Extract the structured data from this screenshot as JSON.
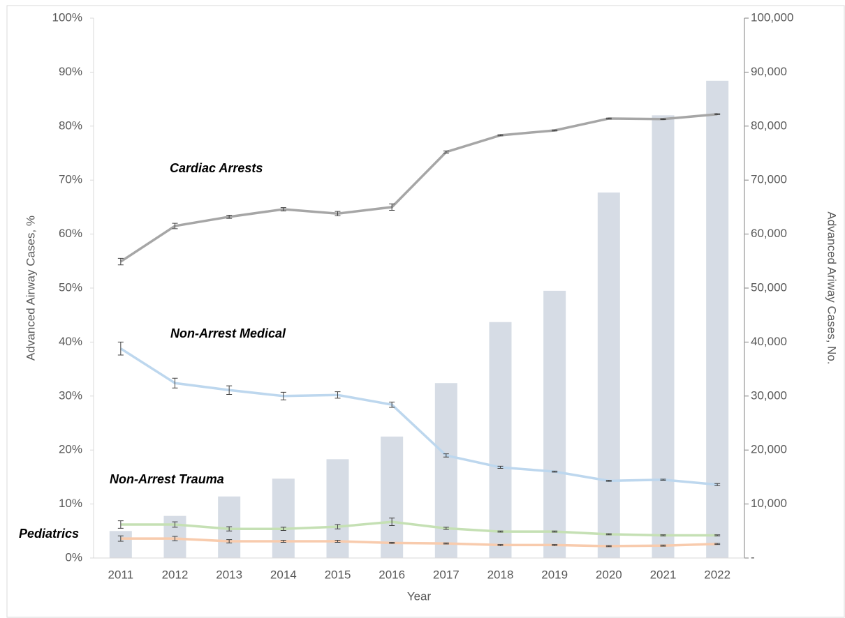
{
  "chart_data": {
    "type": "bar-line",
    "xlabel": "Year",
    "ylabel": "Advanced Airway Cases, %",
    "y2label": "Advanced Ariway Cases, No.",
    "categories": [
      "2011",
      "2012",
      "2013",
      "2014",
      "2015",
      "2016",
      "2017",
      "2018",
      "2019",
      "2020",
      "2021",
      "2022"
    ],
    "ylim": [
      0,
      100
    ],
    "yticks": [
      {
        "value": 0,
        "label": "0%"
      },
      {
        "value": 10,
        "label": "10%"
      },
      {
        "value": 20,
        "label": "20%"
      },
      {
        "value": 30,
        "label": "30%"
      },
      {
        "value": 40,
        "label": "40%"
      },
      {
        "value": 50,
        "label": "50%"
      },
      {
        "value": 60,
        "label": "60%"
      },
      {
        "value": 70,
        "label": "70%"
      },
      {
        "value": 80,
        "label": "80%"
      },
      {
        "value": 90,
        "label": "90%"
      },
      {
        "value": 100,
        "label": "100%"
      }
    ],
    "y2lim": [
      0,
      100000
    ],
    "y2ticks": [
      {
        "value": 0,
        "label": "-"
      },
      {
        "value": 10000,
        "label": "10,000"
      },
      {
        "value": 20000,
        "label": "20,000"
      },
      {
        "value": 30000,
        "label": "30,000"
      },
      {
        "value": 40000,
        "label": "40,000"
      },
      {
        "value": 50000,
        "label": "50,000"
      },
      {
        "value": 60000,
        "label": "60,000"
      },
      {
        "value": 70000,
        "label": "70,000"
      },
      {
        "value": 80000,
        "label": "80,000"
      },
      {
        "value": 90000,
        "label": "90,000"
      },
      {
        "value": 100000,
        "label": "100,000"
      }
    ],
    "bars": {
      "axis": "y2",
      "color": "#d6dce5",
      "values": [
        5000,
        7800,
        11400,
        14700,
        18300,
        22500,
        32400,
        43700,
        49500,
        67700,
        82000,
        88400
      ]
    },
    "series": [
      {
        "name": "Cardiac Arrests",
        "color": "#a6a6a6",
        "values": [
          54.9,
          61.5,
          63.2,
          64.6,
          63.8,
          65.0,
          75.2,
          78.3,
          79.2,
          81.4,
          81.3,
          82.2
        ],
        "errors": [
          0.6,
          0.5,
          0.3,
          0.3,
          0.4,
          0.6,
          0.2,
          0.1,
          0.1,
          0.1,
          0.1,
          0.1
        ]
      },
      {
        "name": "Non-Arrest Medical",
        "color": "#bdd7ee",
        "values": [
          38.8,
          32.4,
          31.1,
          30.0,
          30.2,
          28.4,
          19.0,
          16.8,
          16.0,
          14.3,
          14.5,
          13.6
        ],
        "errors": [
          1.2,
          0.9,
          0.8,
          0.7,
          0.6,
          0.5,
          0.3,
          0.2,
          0.1,
          0.1,
          0.1,
          0.2
        ]
      },
      {
        "name": "Non-Arrest Trauma",
        "color": "#c5e0b4",
        "values": [
          6.2,
          6.2,
          5.4,
          5.4,
          5.8,
          6.7,
          5.5,
          4.9,
          4.9,
          4.4,
          4.2,
          4.2
        ],
        "errors": [
          0.7,
          0.5,
          0.4,
          0.3,
          0.4,
          0.7,
          0.2,
          0.1,
          0.1,
          0.1,
          0.1,
          0.1
        ]
      },
      {
        "name": "Pediatrics",
        "color": "#f8cbad",
        "values": [
          3.6,
          3.6,
          3.1,
          3.1,
          3.1,
          2.8,
          2.7,
          2.4,
          2.4,
          2.2,
          2.3,
          2.6
        ],
        "errors": [
          0.5,
          0.4,
          0.3,
          0.2,
          0.2,
          0.1,
          0.1,
          0.1,
          0.1,
          0.1,
          0.1,
          0.1
        ]
      }
    ]
  }
}
